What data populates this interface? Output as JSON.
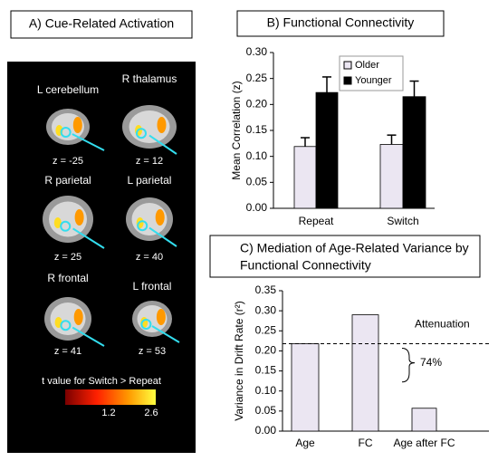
{
  "panel_a": {
    "title": "A) Cue-Related Activation",
    "images": [
      {
        "label": "L cerebellum",
        "z": "z = -25"
      },
      {
        "label": "R thalamus",
        "z": "z = 12"
      },
      {
        "label": "R parietal",
        "z": "z = 25"
      },
      {
        "label": "L parietal",
        "z": "z = 40"
      },
      {
        "label": "R frontal",
        "z": "z = 41"
      },
      {
        "label": "L frontal",
        "z": "z = 53"
      }
    ],
    "colorbar": {
      "label": "t value for Switch > Repeat",
      "ticks": [
        1.2,
        2.6
      ]
    }
  },
  "chart_data": [
    {
      "type": "bar",
      "title": "B) Functional Connectivity",
      "y_label": "Mean Correlation (z)",
      "categories": [
        "Repeat",
        "Switch"
      ],
      "series": [
        {
          "name": "Older",
          "color": "#ebe6f2",
          "values": [
            0.119,
            0.123
          ],
          "errors": [
            0.017,
            0.018
          ]
        },
        {
          "name": "Younger",
          "color": "#000000",
          "values": [
            0.223,
            0.215
          ],
          "errors": [
            0.03,
            0.03
          ]
        }
      ],
      "ylim": [
        0,
        0.3
      ],
      "yticks": [
        {
          "value": 0,
          "label": "0.00"
        },
        {
          "value": 0.05,
          "label": "0.05"
        },
        {
          "value": 0.1,
          "label": "0.10"
        },
        {
          "value": 0.15,
          "label": "0.15"
        },
        {
          "value": 0.2,
          "label": "0.20"
        },
        {
          "value": 0.25,
          "label": "0.25"
        },
        {
          "value": 0.3,
          "label": "0.30"
        }
      ],
      "legend": "upper-right"
    },
    {
      "type": "bar",
      "title": [
        "C) Mediation of Age-Related Variance by",
        "Functional Connectivity"
      ],
      "y_label": "Variance in Drift Rate (r²)",
      "categories": [
        "Age",
        "FC",
        "Age after FC"
      ],
      "series": [
        {
          "color": "#ebe6f2",
          "values": [
            0.218,
            0.29,
            0.057
          ]
        }
      ],
      "ylim": [
        0,
        0.35
      ],
      "yticks": [
        {
          "value": 0,
          "label": "0.00"
        },
        {
          "value": 0.05,
          "label": "0.05"
        },
        {
          "value": 0.1,
          "label": "0.10"
        },
        {
          "value": 0.15,
          "label": "0.15"
        },
        {
          "value": 0.2,
          "label": "0.20"
        },
        {
          "value": 0.25,
          "label": "0.25"
        },
        {
          "value": 0.3,
          "label": "0.30"
        },
        {
          "value": 0.35,
          "label": "0.35"
        }
      ],
      "reference_line": 0.218,
      "annotations": [
        "Attenuation",
        "74%"
      ]
    }
  ]
}
